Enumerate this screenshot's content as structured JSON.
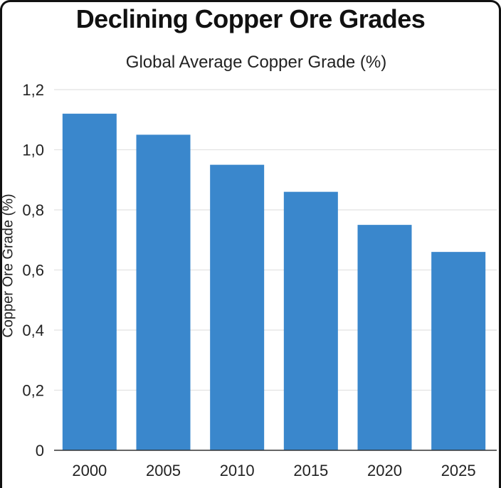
{
  "chart_data": {
    "type": "bar",
    "title": "Declining Copper Ore Grades",
    "subtitle": "Global Average Copper Grade (%)",
    "xlabel": "",
    "ylabel": "Copper Ore Grade (%)",
    "categories": [
      "2000",
      "2005",
      "2010",
      "2015",
      "2020",
      "2025"
    ],
    "values": [
      1.12,
      1.05,
      0.95,
      0.86,
      0.75,
      0.66
    ],
    "ylim": [
      0,
      1.2
    ],
    "yticks": [
      0,
      0.2,
      0.4,
      0.6,
      0.8,
      1.0,
      1.2
    ],
    "ytick_labels": [
      "0",
      "0,2",
      "0,4",
      "0,6",
      "0,8",
      "1,0",
      "1,2"
    ],
    "grid": true,
    "bar_color": "#3a87cc",
    "grid_color": "#e2e2e2"
  }
}
